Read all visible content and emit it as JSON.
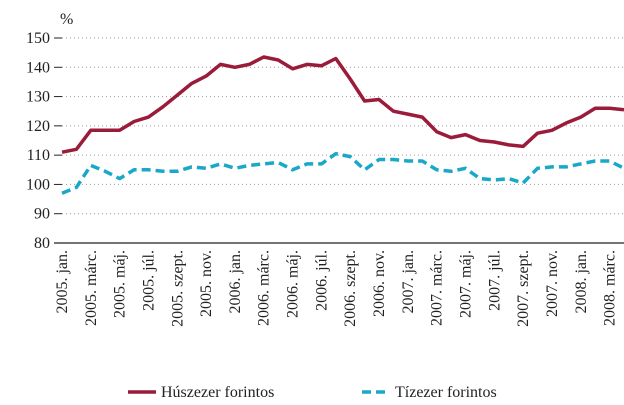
{
  "chart_data": {
    "type": "line",
    "y_unit": "%",
    "categories": [
      "2005. jan.",
      null,
      "2005. márc.",
      null,
      "2005. máj.",
      null,
      "2005. júl.",
      null,
      "2005. szept.",
      null,
      "2005. nov.",
      null,
      "2006. jan.",
      null,
      "2006. márc.",
      null,
      "2006. máj.",
      null,
      "2006. júl.",
      null,
      "2006. szept.",
      null,
      "2006. nov.",
      null,
      "2007. jan.",
      null,
      "2007. márc.",
      null,
      "2007. máj.",
      null,
      "2007. júl.",
      null,
      "2007. szept.",
      null,
      "2007. nov.",
      null,
      "2008. jan.",
      null,
      "2008. márc.",
      null
    ],
    "series": [
      {
        "name": "Húszezer forintos",
        "color": "#9b1b3a",
        "dash": false,
        "values": [
          111,
          112,
          118.5,
          118.5,
          118.5,
          121.5,
          123,
          126.5,
          130.5,
          134.5,
          137,
          141,
          140,
          141,
          143.5,
          142.5,
          139.5,
          141,
          140.5,
          143,
          136,
          128.5,
          129,
          125,
          124,
          123,
          118,
          116,
          117,
          115,
          114.5,
          113.5,
          113,
          117.5,
          118.5,
          121,
          123,
          126,
          126,
          125.5
        ]
      },
      {
        "name": "Tízezer forintos",
        "color": "#1aa8c8",
        "dash": true,
        "values": [
          97,
          99,
          106.5,
          104.5,
          102,
          105,
          105,
          104.5,
          104.5,
          106,
          105.5,
          107,
          105.5,
          106.5,
          107,
          107.5,
          105,
          107,
          107,
          110.5,
          109.5,
          105,
          108.5,
          108.5,
          108,
          108,
          105,
          104.5,
          105.5,
          102,
          101.5,
          102,
          100.5,
          105.5,
          106,
          106,
          107,
          108,
          108,
          105.5
        ]
      }
    ],
    "ylim": [
      80,
      150
    ],
    "yticks": [
      80,
      90,
      100,
      110,
      120,
      130,
      140,
      150
    ],
    "grid": true
  }
}
